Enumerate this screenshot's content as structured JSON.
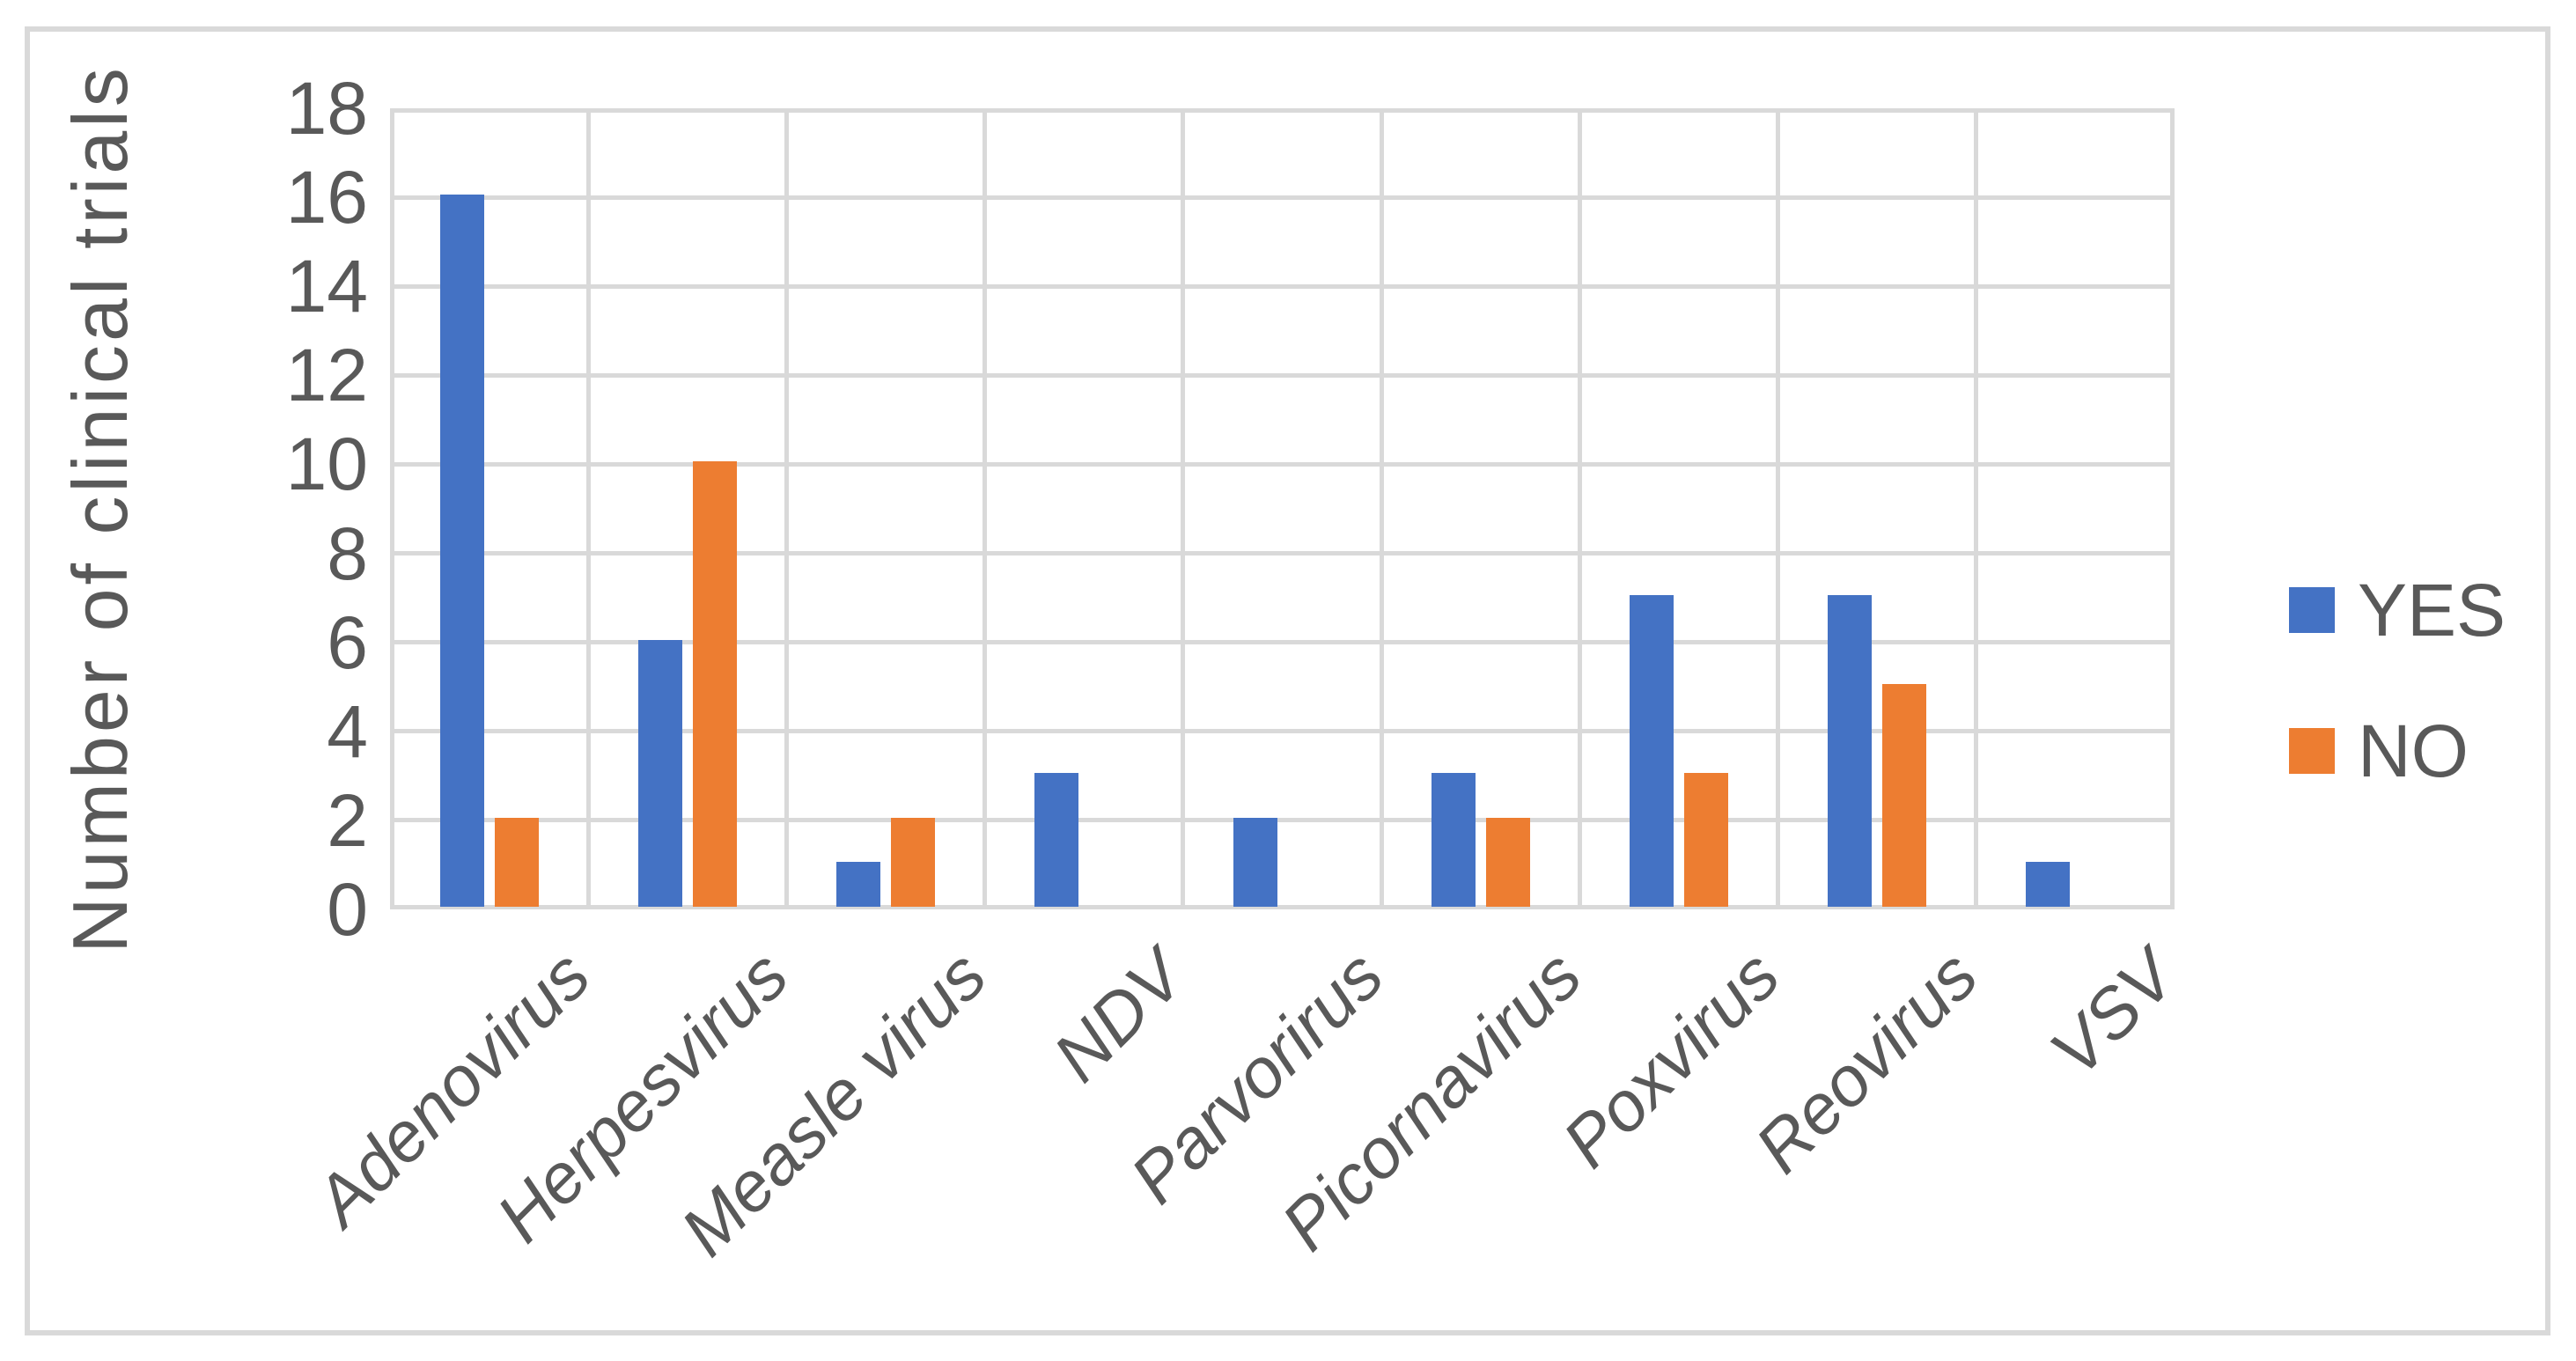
{
  "figure": {
    "background_color": "#ffffff",
    "border_color": "#d9d9d9"
  },
  "chart_data": {
    "type": "bar",
    "title": "",
    "xlabel": "",
    "ylabel": "Number of clinical trials",
    "categories": [
      "Adenovirus",
      "Herpesvirus",
      "Measle virus",
      "NDV",
      "Parvorirus",
      "Picornavirus",
      "Poxvirus",
      "Reovirus",
      "VSV"
    ],
    "series": [
      {
        "name": "YES",
        "color": "#4472c4",
        "values": [
          16,
          6,
          1,
          3,
          2,
          3,
          7,
          7,
          1
        ]
      },
      {
        "name": "NO",
        "color": "#ed7d31",
        "values": [
          2,
          10,
          2,
          0,
          0,
          2,
          3,
          5,
          0
        ]
      }
    ],
    "ylim": [
      0,
      18
    ],
    "ytick_step": 2,
    "ytick_labels": [
      "0",
      "2",
      "4",
      "6",
      "8",
      "10",
      "12",
      "14",
      "16",
      "18"
    ],
    "grid": true,
    "legend_position": "right",
    "gridline_color": "#d9d9d9",
    "axis_text_color": "#595959"
  }
}
